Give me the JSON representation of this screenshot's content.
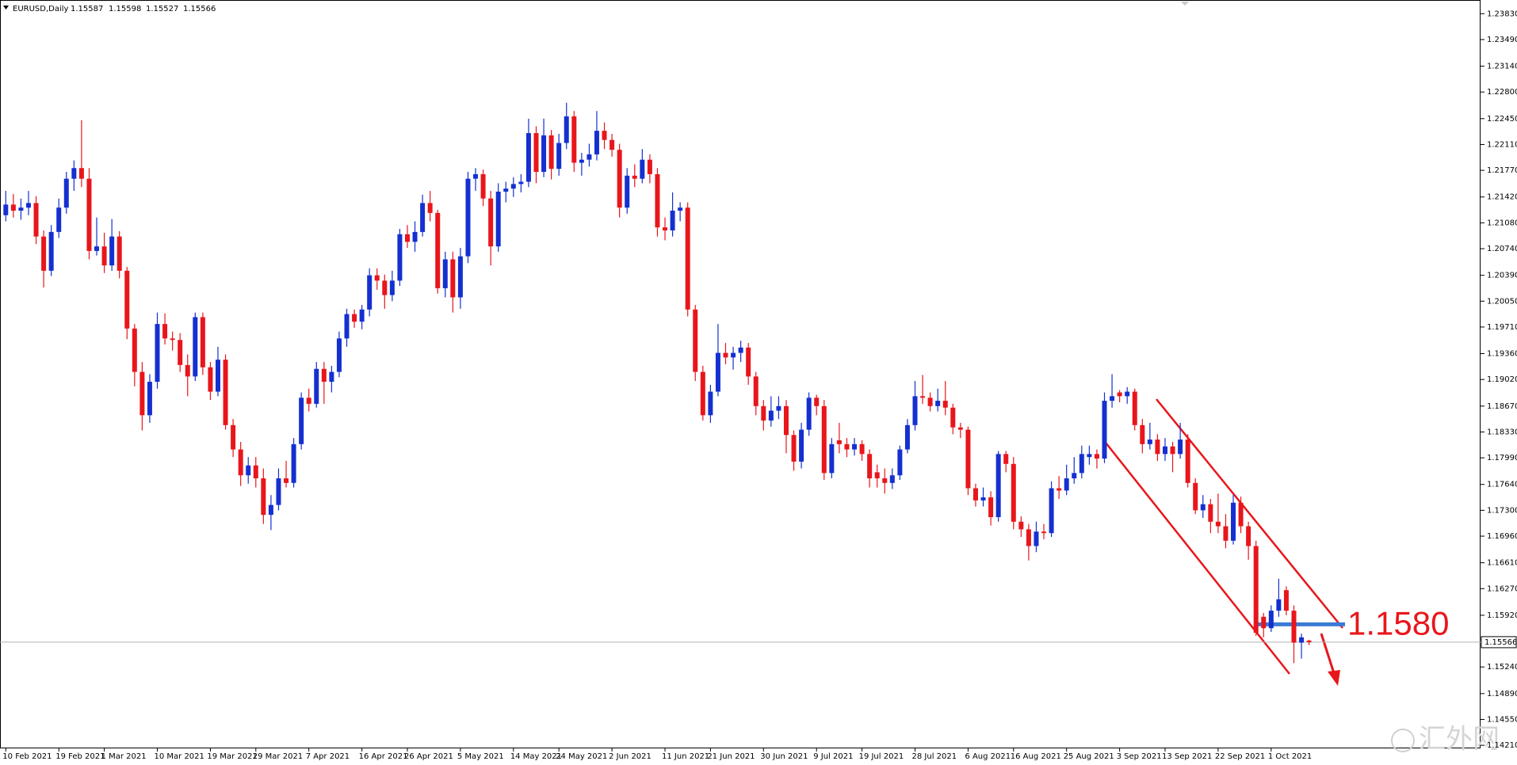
{
  "chart_data": {
    "type": "candlestick",
    "title": "EURUSD,Daily",
    "up_color": "#1430d0",
    "down_color": "#e8161b",
    "price_line_color": "#b0b0b0",
    "watermark": "汇外网",
    "annotation": {
      "label": "1.1580",
      "value": 1.158,
      "color": "#e8161b",
      "line_color": "#3a7bd5"
    },
    "ylim": [
      1.1418,
      1.2401
    ],
    "yticks": [
      {
        "value": 1.2383,
        "label": "1.23830"
      },
      {
        "value": 1.2349,
        "label": "1.23490"
      },
      {
        "value": 1.2314,
        "label": "1.23140"
      },
      {
        "value": 1.228,
        "label": "1.22800"
      },
      {
        "value": 1.2245,
        "label": "1.22450"
      },
      {
        "value": 1.2211,
        "label": "1.22110"
      },
      {
        "value": 1.2177,
        "label": "1.21770"
      },
      {
        "value": 1.2142,
        "label": "1.21420"
      },
      {
        "value": 1.2108,
        "label": "1.21080"
      },
      {
        "value": 1.2074,
        "label": "1.20740"
      },
      {
        "value": 1.2039,
        "label": "1.20390"
      },
      {
        "value": 1.2005,
        "label": "1.20050"
      },
      {
        "value": 1.1971,
        "label": "1.19710"
      },
      {
        "value": 1.1936,
        "label": "1.19360"
      },
      {
        "value": 1.1902,
        "label": "1.19020"
      },
      {
        "value": 1.1867,
        "label": "1.18670"
      },
      {
        "value": 1.1833,
        "label": "1.18330"
      },
      {
        "value": 1.1799,
        "label": "1.17990"
      },
      {
        "value": 1.1764,
        "label": "1.17640"
      },
      {
        "value": 1.173,
        "label": "1.17300"
      },
      {
        "value": 1.1696,
        "label": "1.16960"
      },
      {
        "value": 1.1661,
        "label": "1.16610"
      },
      {
        "value": 1.1627,
        "label": "1.16270"
      },
      {
        "value": 1.1592,
        "label": "1.15920"
      },
      {
        "value": 1.1524,
        "label": "1.15240"
      },
      {
        "value": 1.1489,
        "label": "1.14890"
      },
      {
        "value": 1.1455,
        "label": "1.14550"
      },
      {
        "value": 1.1421,
        "label": "1.14210"
      }
    ],
    "categories": [
      "10 Feb 2021",
      null,
      null,
      null,
      null,
      null,
      null,
      "19 Feb 2021",
      null,
      null,
      null,
      null,
      null,
      "1 Mar 2021",
      null,
      null,
      null,
      null,
      null,
      null,
      "10 Mar 2021",
      null,
      null,
      null,
      null,
      null,
      null,
      "19 Mar 2021",
      null,
      null,
      null,
      null,
      null,
      "29 Mar 2021",
      null,
      null,
      null,
      null,
      null,
      null,
      "7 Apr 2021",
      null,
      null,
      null,
      null,
      null,
      null,
      "16 Apr 2021",
      null,
      null,
      null,
      null,
      null,
      "26 Apr 2021",
      null,
      null,
      null,
      null,
      null,
      null,
      "5 May 2021",
      null,
      null,
      null,
      null,
      null,
      null,
      "14 May 2021",
      null,
      null,
      null,
      null,
      null,
      "24 May 2021",
      null,
      null,
      null,
      null,
      null,
      null,
      "2 Jun 2021",
      null,
      null,
      null,
      null,
      null,
      null,
      "11 Jun 2021",
      null,
      null,
      null,
      null,
      null,
      "21 Jun 2021",
      null,
      null,
      null,
      null,
      null,
      null,
      "30 Jun 2021",
      null,
      null,
      null,
      null,
      null,
      null,
      "9 Jul 2021",
      null,
      null,
      null,
      null,
      null,
      "19 Jul 2021",
      null,
      null,
      null,
      null,
      null,
      null,
      "28 Jul 2021",
      null,
      null,
      null,
      null,
      null,
      null,
      "6 Aug 2021",
      null,
      null,
      null,
      null,
      null,
      "16 Aug 2021",
      null,
      null,
      null,
      null,
      null,
      null,
      "25 Aug 2021",
      null,
      null,
      null,
      null,
      null,
      null,
      "3 Sep 2021",
      null,
      null,
      null,
      null,
      null,
      "13 Sep 2021",
      null,
      null,
      null,
      null,
      null,
      null,
      "22 Sep 2021",
      null,
      null,
      null,
      null,
      null,
      null,
      "1 Oct 2021",
      null,
      null,
      null,
      null,
      null
    ],
    "ohlc": [
      [
        1.2118,
        1.215,
        1.211,
        1.2132
      ],
      [
        1.2132,
        1.2146,
        1.2115,
        1.2124
      ],
      [
        1.2124,
        1.214,
        1.2112,
        1.2128
      ],
      [
        1.2128,
        1.215,
        1.2118,
        1.2134
      ],
      [
        1.2134,
        1.2143,
        1.208,
        1.209
      ],
      [
        1.209,
        1.2098,
        1.2023,
        1.2045
      ],
      [
        1.2045,
        1.2105,
        1.2038,
        1.2096
      ],
      [
        1.2096,
        1.214,
        1.2088,
        1.2128
      ],
      [
        1.2128,
        1.2175,
        1.212,
        1.2166
      ],
      [
        1.2166,
        1.219,
        1.215,
        1.218
      ],
      [
        1.218,
        1.2243,
        1.2155,
        1.2166
      ],
      [
        1.2166,
        1.218,
        1.206,
        1.2071
      ],
      [
        1.2071,
        1.2115,
        1.2065,
        1.2077
      ],
      [
        1.2077,
        1.2095,
        1.2042,
        1.2052
      ],
      [
        1.2052,
        1.2113,
        1.2045,
        1.209
      ],
      [
        1.209,
        1.2097,
        1.2035,
        1.2045
      ],
      [
        1.2045,
        1.205,
        1.1955,
        1.1969
      ],
      [
        1.1969,
        1.1975,
        1.1893,
        1.1912
      ],
      [
        1.1912,
        1.1925,
        1.1835,
        1.1855
      ],
      [
        1.1855,
        1.1909,
        1.1845,
        1.1899
      ],
      [
        1.1899,
        1.199,
        1.189,
        1.1975
      ],
      [
        1.1975,
        1.1989,
        1.1948,
        1.1956
      ],
      [
        1.1956,
        1.1965,
        1.194,
        1.1954
      ],
      [
        1.1954,
        1.1963,
        1.1912,
        1.1921
      ],
      [
        1.1921,
        1.1935,
        1.188,
        1.1906
      ],
      [
        1.1906,
        1.199,
        1.19,
        1.1984
      ],
      [
        1.1984,
        1.199,
        1.1908,
        1.1918
      ],
      [
        1.1918,
        1.1925,
        1.1875,
        1.1886
      ],
      [
        1.1886,
        1.1945,
        1.188,
        1.1928
      ],
      [
        1.1928,
        1.1935,
        1.1836,
        1.1842
      ],
      [
        1.1842,
        1.185,
        1.18,
        1.181
      ],
      [
        1.181,
        1.182,
        1.1762,
        1.1776
      ],
      [
        1.1776,
        1.18,
        1.1765,
        1.1789
      ],
      [
        1.1789,
        1.18,
        1.176,
        1.1772
      ],
      [
        1.1772,
        1.1785,
        1.1712,
        1.1724
      ],
      [
        1.1724,
        1.175,
        1.1704,
        1.1737
      ],
      [
        1.1737,
        1.1785,
        1.173,
        1.1772
      ],
      [
        1.1772,
        1.1795,
        1.176,
        1.1766
      ],
      [
        1.1766,
        1.1825,
        1.176,
        1.1817
      ],
      [
        1.1817,
        1.1885,
        1.181,
        1.1878
      ],
      [
        1.1878,
        1.189,
        1.186,
        1.187
      ],
      [
        1.187,
        1.1925,
        1.1865,
        1.1916
      ],
      [
        1.1916,
        1.1925,
        1.187,
        1.1899
      ],
      [
        1.1899,
        1.192,
        1.1885,
        1.1912
      ],
      [
        1.1912,
        1.1965,
        1.1905,
        1.1956
      ],
      [
        1.1956,
        1.1995,
        1.1945,
        1.1988
      ],
      [
        1.1988,
        1.1994,
        1.197,
        1.1978
      ],
      [
        1.1978,
        1.2,
        1.1968,
        1.1994
      ],
      [
        1.1994,
        1.2048,
        1.1985,
        1.2039
      ],
      [
        1.2039,
        1.2048,
        1.202,
        1.2032
      ],
      [
        1.2032,
        1.204,
        1.1995,
        1.2013
      ],
      [
        1.2013,
        1.2045,
        1.2005,
        1.2032
      ],
      [
        1.2032,
        1.21,
        1.2025,
        1.2093
      ],
      [
        1.2093,
        1.2105,
        1.2075,
        1.2083
      ],
      [
        1.2083,
        1.211,
        1.207,
        1.2096
      ],
      [
        1.2096,
        1.2145,
        1.209,
        1.2134
      ],
      [
        1.2134,
        1.215,
        1.211,
        1.2121
      ],
      [
        1.2121,
        1.2125,
        1.2015,
        1.2022
      ],
      [
        1.2022,
        1.207,
        1.201,
        1.206
      ],
      [
        1.206,
        1.207,
        1.199,
        1.201
      ],
      [
        1.201,
        1.2075,
        1.1995,
        1.2064
      ],
      [
        1.2064,
        1.2175,
        1.2055,
        1.2166
      ],
      [
        1.2166,
        1.218,
        1.215,
        1.2172
      ],
      [
        1.2172,
        1.2178,
        1.213,
        1.214
      ],
      [
        1.214,
        1.215,
        1.2052,
        1.2077
      ],
      [
        1.2077,
        1.216,
        1.207,
        1.2149
      ],
      [
        1.2149,
        1.2162,
        1.2135,
        1.2153
      ],
      [
        1.2153,
        1.2168,
        1.2142,
        1.2159
      ],
      [
        1.2159,
        1.2172,
        1.2148,
        1.2162
      ],
      [
        1.2162,
        1.2245,
        1.2155,
        1.2226
      ],
      [
        1.2226,
        1.2235,
        1.216,
        1.2175
      ],
      [
        1.2175,
        1.2245,
        1.2168,
        1.2223
      ],
      [
        1.2223,
        1.223,
        1.2165,
        1.2179
      ],
      [
        1.2179,
        1.2225,
        1.217,
        1.2213
      ],
      [
        1.2213,
        1.2266,
        1.2205,
        1.2248
      ],
      [
        1.2248,
        1.2255,
        1.2175,
        1.2187
      ],
      [
        1.2187,
        1.22,
        1.217,
        1.2191
      ],
      [
        1.2191,
        1.2212,
        1.2182,
        1.2198
      ],
      [
        1.2198,
        1.2255,
        1.219,
        1.2229
      ],
      [
        1.2229,
        1.224,
        1.2205,
        1.2217
      ],
      [
        1.2217,
        1.2225,
        1.2195,
        1.2204
      ],
      [
        1.2204,
        1.2212,
        1.2115,
        1.2128
      ],
      [
        1.2128,
        1.218,
        1.212,
        1.217
      ],
      [
        1.217,
        1.2185,
        1.2155,
        1.2166
      ],
      [
        1.2166,
        1.2205,
        1.216,
        1.2191
      ],
      [
        1.2191,
        1.2198,
        1.216,
        1.2172
      ],
      [
        1.2172,
        1.218,
        1.209,
        1.2102
      ],
      [
        1.2102,
        1.2115,
        1.2085,
        1.2098
      ],
      [
        1.2098,
        1.2148,
        1.209,
        1.2124
      ],
      [
        1.2124,
        1.2135,
        1.211,
        1.2128
      ],
      [
        1.2128,
        1.2135,
        1.1985,
        1.1994
      ],
      [
        1.1994,
        1.2,
        1.19,
        1.1912
      ],
      [
        1.1912,
        1.192,
        1.1848,
        1.1855
      ],
      [
        1.1855,
        1.1895,
        1.1845,
        1.1886
      ],
      [
        1.1886,
        1.1975,
        1.188,
        1.1937
      ],
      [
        1.1937,
        1.195,
        1.1922,
        1.1931
      ],
      [
        1.1931,
        1.1945,
        1.1915,
        1.1937
      ],
      [
        1.1937,
        1.1953,
        1.1925,
        1.1944
      ],
      [
        1.1944,
        1.195,
        1.1895,
        1.1906
      ],
      [
        1.1906,
        1.1912,
        1.1855,
        1.1867
      ],
      [
        1.1867,
        1.1875,
        1.1835,
        1.1848
      ],
      [
        1.1848,
        1.188,
        1.184,
        1.1861
      ],
      [
        1.1861,
        1.188,
        1.185,
        1.1867
      ],
      [
        1.1867,
        1.1875,
        1.1805,
        1.1829
      ],
      [
        1.1829,
        1.1835,
        1.1782,
        1.1794
      ],
      [
        1.1794,
        1.1845,
        1.1785,
        1.1836
      ],
      [
        1.1836,
        1.1885,
        1.1828,
        1.1878
      ],
      [
        1.1878,
        1.1882,
        1.1855,
        1.1867
      ],
      [
        1.1867,
        1.1875,
        1.177,
        1.1779
      ],
      [
        1.1779,
        1.1825,
        1.1772,
        1.1817
      ],
      [
        1.1822,
        1.1845,
        1.1805,
        1.1817
      ],
      [
        1.1817,
        1.1825,
        1.18,
        1.181
      ],
      [
        1.181,
        1.1825,
        1.1802,
        1.1817
      ],
      [
        1.1817,
        1.1822,
        1.1795,
        1.1804
      ],
      [
        1.1804,
        1.181,
        1.176,
        1.1772
      ],
      [
        1.178,
        1.179,
        1.176,
        1.1772
      ],
      [
        1.1772,
        1.1785,
        1.1752,
        1.1766
      ],
      [
        1.1766,
        1.1785,
        1.1758,
        1.1776
      ],
      [
        1.1776,
        1.1815,
        1.177,
        1.181
      ],
      [
        1.181,
        1.185,
        1.1805,
        1.1842
      ],
      [
        1.1842,
        1.19,
        1.1835,
        1.188
      ],
      [
        1.188,
        1.1908,
        1.187,
        1.1878
      ],
      [
        1.1878,
        1.1885,
        1.186,
        1.1867
      ],
      [
        1.1867,
        1.189,
        1.186,
        1.1874
      ],
      [
        1.1874,
        1.19,
        1.1855,
        1.1865
      ],
      [
        1.1865,
        1.187,
        1.183,
        1.1839
      ],
      [
        1.1839,
        1.1845,
        1.1825,
        1.1836
      ],
      [
        1.1836,
        1.184,
        1.175,
        1.1759
      ],
      [
        1.1759,
        1.1765,
        1.1735,
        1.1743
      ],
      [
        1.1743,
        1.176,
        1.1735,
        1.1747
      ],
      [
        1.1747,
        1.1755,
        1.171,
        1.1721
      ],
      [
        1.1721,
        1.1808,
        1.1715,
        1.1804
      ],
      [
        1.1804,
        1.1808,
        1.178,
        1.1791
      ],
      [
        1.1791,
        1.18,
        1.1705,
        1.1715
      ],
      [
        1.1715,
        1.1722,
        1.1695,
        1.1705
      ],
      [
        1.1705,
        1.1712,
        1.1664,
        1.1683
      ],
      [
        1.1683,
        1.1715,
        1.1675,
        1.1702
      ],
      [
        1.1702,
        1.1712,
        1.1692,
        1.17
      ],
      [
        1.17,
        1.1768,
        1.1695,
        1.1759
      ],
      [
        1.1759,
        1.1775,
        1.1745,
        1.1756
      ],
      [
        1.1756,
        1.179,
        1.175,
        1.1772
      ],
      [
        1.1772,
        1.18,
        1.1765,
        1.1779
      ],
      [
        1.1779,
        1.1815,
        1.1772,
        1.1804
      ],
      [
        1.18,
        1.1815,
        1.179,
        1.1804
      ],
      [
        1.1804,
        1.181,
        1.1785,
        1.1798
      ],
      [
        1.1798,
        1.1885,
        1.1792,
        1.1874
      ],
      [
        1.1874,
        1.1909,
        1.1865,
        1.188
      ],
      [
        1.1885,
        1.1888,
        1.1872,
        1.188
      ],
      [
        1.188,
        1.1892,
        1.187,
        1.1886
      ],
      [
        1.1886,
        1.189,
        1.1835,
        1.1842
      ],
      [
        1.1842,
        1.185,
        1.1805,
        1.1817
      ],
      [
        1.1817,
        1.1845,
        1.181,
        1.1823
      ],
      [
        1.1823,
        1.183,
        1.1795,
        1.1804
      ],
      [
        1.1804,
        1.1825,
        1.1795,
        1.1814
      ],
      [
        1.1814,
        1.182,
        1.178,
        1.1804
      ],
      [
        1.1804,
        1.1845,
        1.1798,
        1.1823
      ],
      [
        1.1823,
        1.183,
        1.176,
        1.1766
      ],
      [
        1.1766,
        1.1772,
        1.1725,
        1.173
      ],
      [
        1.173,
        1.175,
        1.172,
        1.1738
      ],
      [
        1.1738,
        1.1745,
        1.17,
        1.1715
      ],
      [
        1.1715,
        1.1752,
        1.17,
        1.1709
      ],
      [
        1.1709,
        1.1725,
        1.168,
        1.169
      ],
      [
        1.169,
        1.175,
        1.1685,
        1.174
      ],
      [
        1.174,
        1.1748,
        1.17,
        1.1709
      ],
      [
        1.1709,
        1.1715,
        1.1665,
        1.1683
      ],
      [
        1.1683,
        1.169,
        1.1565,
        1.1569
      ],
      [
        1.159,
        1.1595,
        1.1563,
        1.1575
      ],
      [
        1.1575,
        1.1605,
        1.157,
        1.1598
      ],
      [
        1.1598,
        1.164,
        1.159,
        1.1613
      ],
      [
        1.1625,
        1.163,
        1.1592,
        1.1598
      ],
      [
        1.1598,
        1.1605,
        1.1529,
        1.1556
      ],
      [
        1.1556,
        1.1568,
        1.1535,
        1.1563
      ],
      [
        1.15587,
        1.15598,
        1.15527,
        1.15566
      ]
    ]
  }
}
